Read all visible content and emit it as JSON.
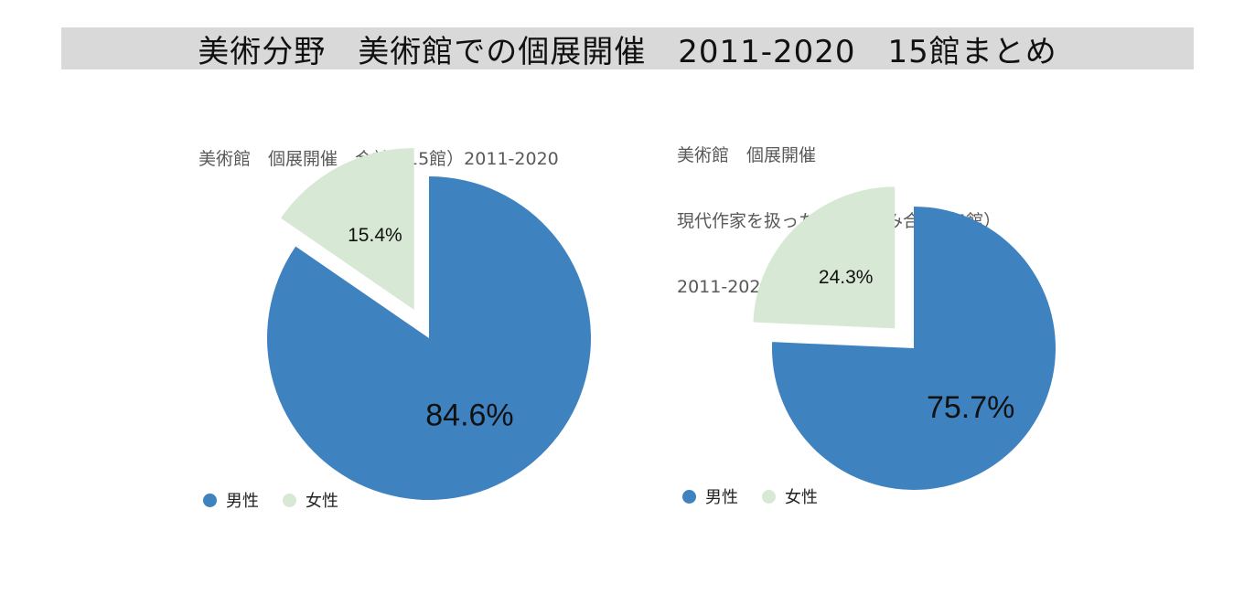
{
  "banner": {
    "title": "美術分野　美術館での個展開催　2011-2020　15館まとめ"
  },
  "colors": {
    "male": "#3f82c0",
    "female": "#d7e9d5",
    "banner_bg": "#d9d9d9"
  },
  "legend": {
    "male": "男性",
    "female": "女性"
  },
  "chart_data": [
    {
      "type": "pie",
      "title_lines": [
        "美術館　個展開催　合計（15館）2011-2020"
      ],
      "slices": [
        {
          "name": "男性",
          "value": 84.6,
          "label": "84.6%"
        },
        {
          "name": "女性",
          "value": 15.4,
          "label": "15.4%",
          "exploded": true
        }
      ],
      "legend_position": "bottom-left"
    },
    {
      "type": "pie",
      "title_lines": [
        "美術館　個展開催",
        "現代作家を扱った美術館のみ合計（5館）",
        "2011-2020"
      ],
      "slices": [
        {
          "name": "男性",
          "value": 75.7,
          "label": "75.7%"
        },
        {
          "name": "女性",
          "value": 24.3,
          "label": "24.3%",
          "exploded": true
        }
      ],
      "legend_position": "bottom-left"
    }
  ]
}
